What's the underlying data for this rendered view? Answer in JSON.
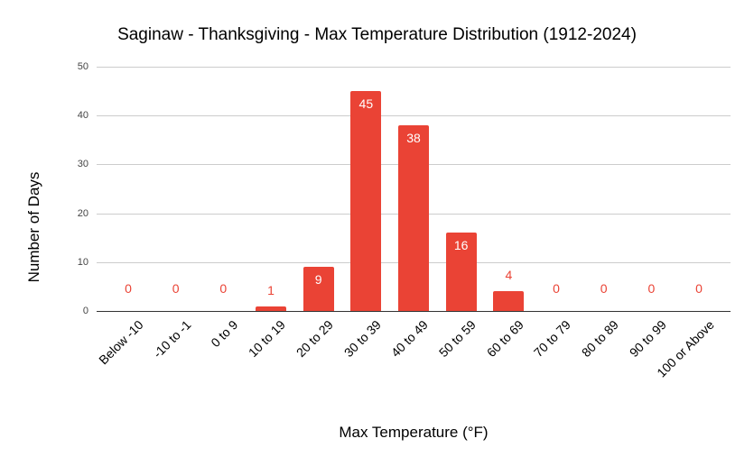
{
  "chart_data": {
    "type": "bar",
    "title": "Saginaw - Thanksgiving - Max Temperature Distribution (1912-2024)",
    "xlabel": "Max Temperature (°F)",
    "ylabel": "Number of Days",
    "categories": [
      "Below -10",
      "-10 to -1",
      "0 to 9",
      "10 to 19",
      "20 to 29",
      "30 to 39",
      "40 to 49",
      "50 to 59",
      "60 to 69",
      "70 to 79",
      "80 to 89",
      "90 to 99",
      "100 or Above"
    ],
    "values": [
      0,
      0,
      0,
      1,
      9,
      45,
      38,
      16,
      4,
      0,
      0,
      0,
      0
    ],
    "ylim": [
      0,
      50
    ],
    "yticks": [
      0,
      10,
      20,
      30,
      40,
      50
    ],
    "grid": true,
    "legend": null,
    "bar_color": "#ea4335",
    "data_labels": true
  }
}
